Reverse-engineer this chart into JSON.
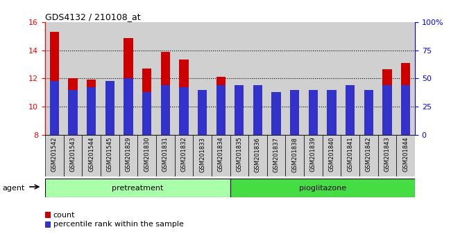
{
  "title": "GDS4132 / 210108_at",
  "samples": [
    "GSM201542",
    "GSM201543",
    "GSM201544",
    "GSM201545",
    "GSM201829",
    "GSM201830",
    "GSM201831",
    "GSM201832",
    "GSM201833",
    "GSM201834",
    "GSM201835",
    "GSM201836",
    "GSM201837",
    "GSM201838",
    "GSM201839",
    "GSM201840",
    "GSM201841",
    "GSM201842",
    "GSM201843",
    "GSM201844"
  ],
  "count_values": [
    15.3,
    12.0,
    11.9,
    10.05,
    14.85,
    12.7,
    13.9,
    13.35,
    10.4,
    12.1,
    11.45,
    11.1,
    9.55,
    10.5,
    10.45,
    11.05,
    10.5,
    9.75,
    12.65,
    13.1
  ],
  "percentile_values_pct": [
    48,
    40,
    42,
    48,
    50,
    38,
    44,
    42,
    40,
    44,
    44,
    44,
    38,
    40,
    40,
    40,
    44,
    40,
    44,
    44
  ],
  "bar_bottom": 8.0,
  "ylim_left": [
    8,
    16
  ],
  "ylim_right": [
    0,
    100
  ],
  "yticks_left": [
    8,
    10,
    12,
    14,
    16
  ],
  "yticks_right": [
    0,
    25,
    50,
    75,
    100
  ],
  "ytick_labels_right": [
    "0",
    "25",
    "50",
    "75",
    "100%"
  ],
  "bar_color_count": "#cc0000",
  "bar_color_pct": "#3333cc",
  "background_color": "#d0d0d0",
  "pretreatment_color": "#aaffaa",
  "pioglitazone_color": "#44dd44",
  "pretreatment_label": "pretreatment",
  "pioglitazone_label": "pioglitazone",
  "agent_label": "agent",
  "legend_count": "count",
  "legend_pct": "percentile rank within the sample",
  "pretreatment_count": 10,
  "pioglitazone_count": 10,
  "bar_width": 0.5
}
